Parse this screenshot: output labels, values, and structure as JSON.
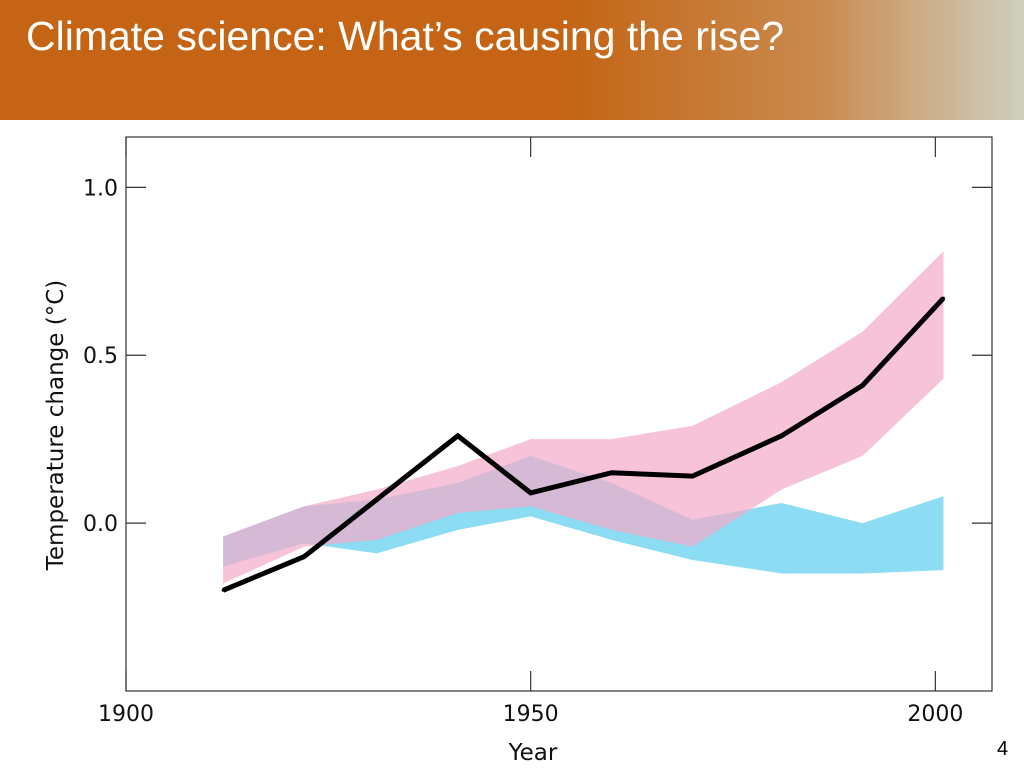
{
  "slide": {
    "title": "Climate science: What’s causing the rise?",
    "slide_number": "4"
  },
  "colors": {
    "banner": "#c46414",
    "observed": "#000000",
    "band_pink": "#f4a9c8",
    "band_blue": "#7fd8f2",
    "band_overlap": "#c9b2d6"
  },
  "chart_data": {
    "type": "line",
    "title": "",
    "xlabel": "Year",
    "ylabel": "Temperature change (°C)",
    "xlim": [
      1900,
      2007
    ],
    "ylim": [
      -0.5,
      1.15
    ],
    "x_ticks": [
      1900,
      1950,
      2000
    ],
    "y_ticks": [
      0.0,
      0.5,
      1.0
    ],
    "x_tick_labels": [
      "1900",
      "1950",
      "2000"
    ],
    "y_tick_labels": [
      "0.0",
      "0.5",
      "1.0"
    ],
    "grid": false,
    "legend": "none",
    "series": [
      {
        "type": "band",
        "color": "#7fd8f2",
        "x": [
          1912,
          1922,
          1931,
          1941,
          1950,
          1960,
          1970,
          1981,
          1991,
          2001
        ],
        "lower": [
          -0.13,
          -0.06,
          -0.09,
          -0.02,
          0.02,
          -0.05,
          -0.11,
          -0.15,
          -0.15,
          -0.14
        ],
        "upper": [
          -0.04,
          0.05,
          0.07,
          0.12,
          0.2,
          0.12,
          0.01,
          0.06,
          0.0,
          0.08
        ]
      },
      {
        "type": "band",
        "color": "#f4a9c8",
        "x": [
          1912,
          1922,
          1931,
          1941,
          1950,
          1960,
          1970,
          1981,
          1991,
          2001
        ],
        "lower": [
          -0.18,
          -0.07,
          -0.05,
          0.03,
          0.05,
          -0.02,
          -0.07,
          0.1,
          0.2,
          0.43
        ],
        "upper": [
          -0.04,
          0.05,
          0.1,
          0.17,
          0.25,
          0.25,
          0.29,
          0.42,
          0.57,
          0.81
        ]
      },
      {
        "type": "line",
        "color": "#000000",
        "x": [
          1912,
          1922,
          1941,
          1950,
          1960,
          1970,
          1981,
          1991,
          2001
        ],
        "y": [
          -0.2,
          -0.1,
          0.26,
          0.09,
          0.15,
          0.14,
          0.26,
          0.41,
          0.67
        ]
      }
    ]
  }
}
